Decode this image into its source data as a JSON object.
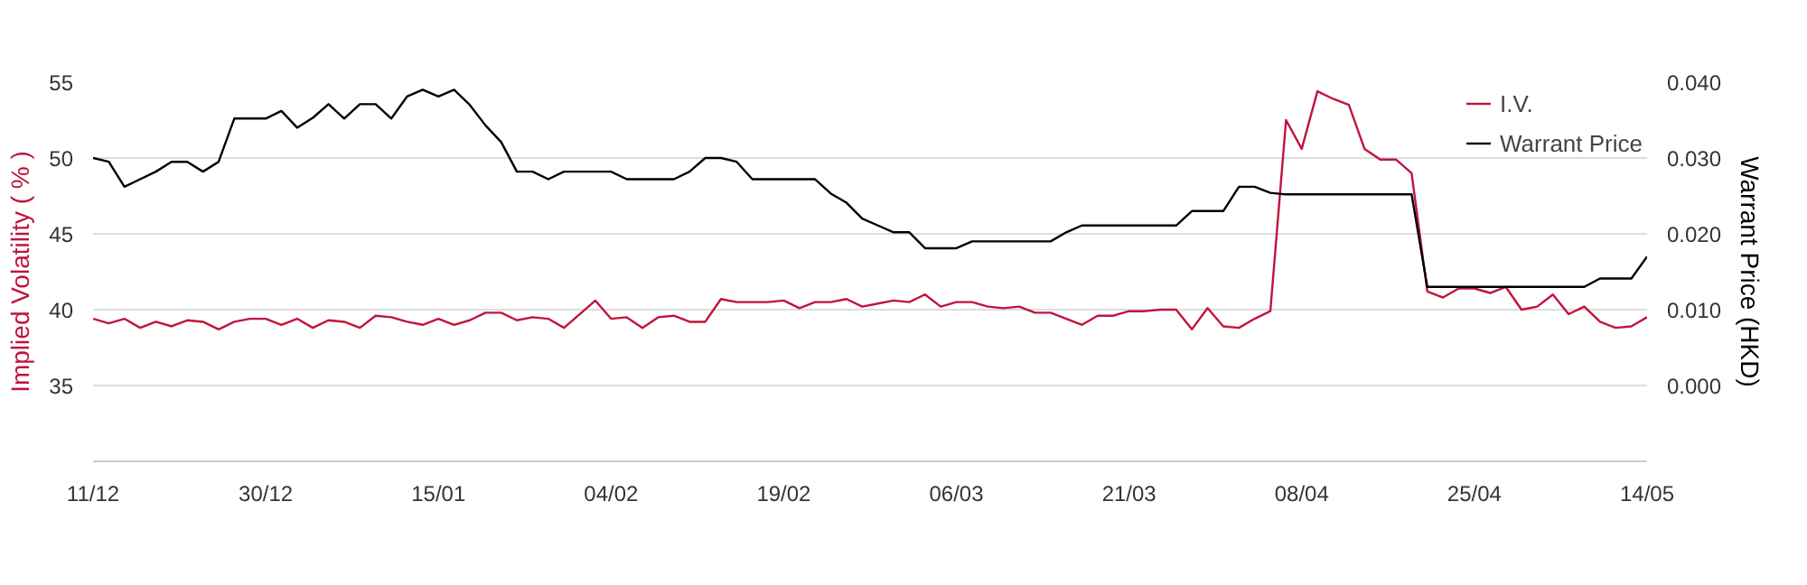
{
  "chart_data": {
    "type": "line",
    "categories": [
      "11/12",
      null,
      null,
      null,
      null,
      null,
      null,
      null,
      null,
      null,
      null,
      "30/12",
      null,
      null,
      null,
      null,
      null,
      null,
      null,
      null,
      null,
      null,
      "15/01",
      null,
      null,
      null,
      null,
      null,
      null,
      null,
      null,
      null,
      null,
      "04/02",
      null,
      null,
      null,
      null,
      null,
      null,
      null,
      null,
      null,
      null,
      "19/02",
      null,
      null,
      null,
      null,
      null,
      null,
      null,
      null,
      null,
      null,
      "06/03",
      null,
      null,
      null,
      null,
      null,
      null,
      null,
      null,
      null,
      null,
      "21/03",
      null,
      null,
      null,
      null,
      null,
      null,
      null,
      null,
      null,
      null,
      "08/04",
      null,
      null,
      null,
      null,
      null,
      null,
      null,
      null,
      null,
      null,
      "25/04",
      null,
      null,
      null,
      null,
      null,
      null,
      null,
      null,
      null,
      null,
      "14/05"
    ],
    "series": [
      {
        "name": "I.V.",
        "color": "#c0143c",
        "values": [
          39.4,
          39.1,
          39.4,
          38.8,
          39.2,
          38.9,
          39.3,
          39.2,
          38.7,
          39.2,
          39.4,
          39.4,
          39.0,
          39.4,
          38.8,
          39.3,
          39.2,
          38.8,
          39.6,
          39.5,
          39.2,
          39.0,
          39.4,
          39.0,
          39.3,
          39.8,
          39.8,
          39.3,
          39.5,
          39.4,
          38.8,
          39.7,
          40.6,
          39.4,
          39.5,
          38.8,
          39.5,
          39.6,
          39.2,
          39.2,
          40.7,
          40.5,
          40.5,
          40.5,
          40.6,
          40.1,
          40.5,
          40.5,
          40.7,
          40.2,
          40.4,
          40.6,
          40.5,
          41.0,
          40.2,
          40.5,
          40.5,
          40.2,
          40.1,
          40.2,
          39.8,
          39.8,
          39.4,
          39.0,
          39.6,
          39.6,
          39.9,
          39.9,
          40.0,
          40.0,
          38.7,
          40.1,
          38.9,
          38.8,
          39.4,
          39.9,
          52.5,
          50.6,
          54.4,
          53.9,
          53.5,
          50.6,
          49.9,
          49.9,
          49.0,
          41.2,
          40.8,
          41.4,
          41.4,
          41.1,
          41.5,
          40.0,
          40.2,
          41.0,
          39.7,
          40.2,
          39.2,
          38.8,
          38.9,
          39.5
        ]
      },
      {
        "name": "Warrant Price",
        "color": "#000000",
        "axis": "y2",
        "values": [
          0.03,
          0.0295,
          0.0262,
          0.0272,
          0.0282,
          0.0295,
          0.0295,
          0.0282,
          0.0295,
          0.0352,
          0.0352,
          0.0352,
          0.0362,
          0.034,
          0.0353,
          0.0371,
          0.0352,
          0.0371,
          0.0371,
          0.0352,
          0.0381,
          0.039,
          0.0381,
          0.039,
          0.037,
          0.0343,
          0.0321,
          0.0282,
          0.0282,
          0.0272,
          0.0282,
          0.0282,
          0.0282,
          0.0282,
          0.0272,
          0.0272,
          0.0272,
          0.0272,
          0.0282,
          0.03,
          0.03,
          0.0295,
          0.0272,
          0.0272,
          0.0272,
          0.0272,
          0.0272,
          0.0253,
          0.0241,
          0.022,
          0.0211,
          0.0202,
          0.0202,
          0.0181,
          0.0181,
          0.0181,
          0.019,
          0.019,
          0.019,
          0.019,
          0.019,
          0.019,
          0.0202,
          0.0211,
          0.0211,
          0.0211,
          0.0211,
          0.0211,
          0.0211,
          0.0211,
          0.023,
          0.023,
          0.023,
          0.0262,
          0.0262,
          0.0254,
          0.0252,
          0.0252,
          0.0252,
          0.0252,
          0.0252,
          0.0252,
          0.0252,
          0.0252,
          0.0252,
          0.013,
          0.013,
          0.013,
          0.013,
          0.013,
          0.013,
          0.013,
          0.013,
          0.013,
          0.013,
          0.013,
          0.0141,
          0.0141,
          0.0141,
          0.017
        ]
      }
    ],
    "ylabel": "Implied Volatility ( % )",
    "y2label": "Warrant Price (HKD)",
    "ylim": [
      30,
      55
    ],
    "yticks": [
      35,
      40,
      45,
      50,
      55
    ],
    "y2lim": [
      -0.01,
      0.04
    ],
    "y2ticks": [
      {
        "value": 0.0,
        "label": "0.000"
      },
      {
        "value": 0.01,
        "label": "0.010"
      },
      {
        "value": 0.02,
        "label": "0.020"
      },
      {
        "value": 0.03,
        "label": "0.030"
      },
      {
        "value": 0.04,
        "label": "0.040"
      }
    ],
    "grid": "y",
    "legend": "top right",
    "marker": "none",
    "line_style": "solid"
  }
}
